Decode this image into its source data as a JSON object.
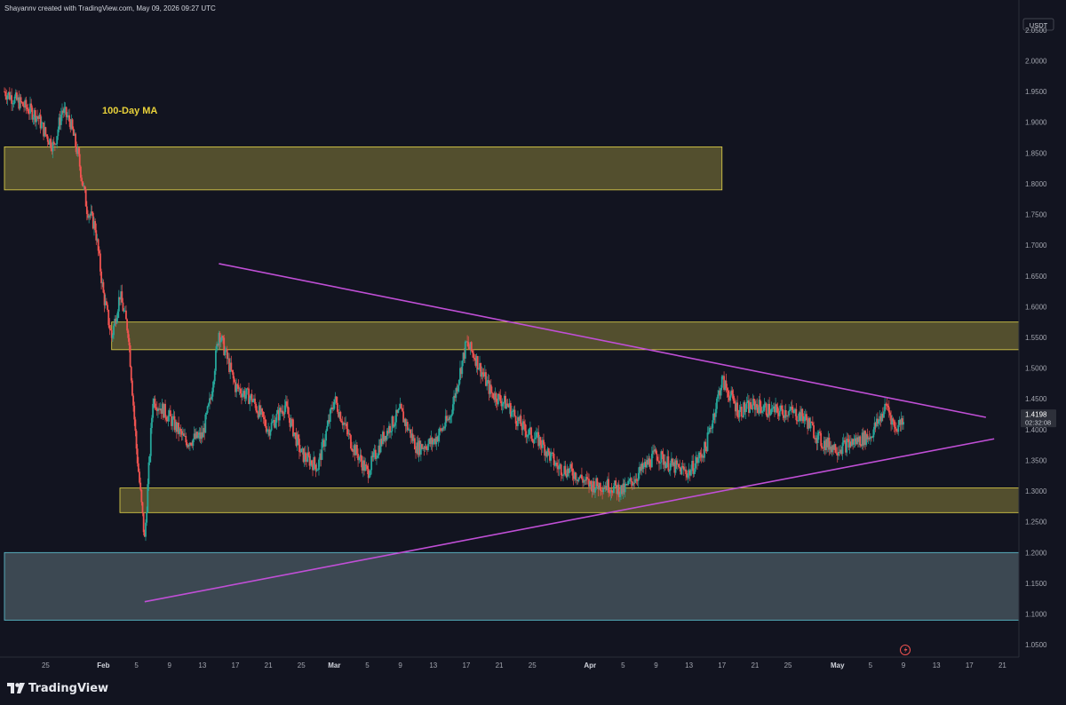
{
  "header": {
    "attribution": "Shayannv created with TradingView.com, May 09, 2026 09:27 UTC"
  },
  "brand": {
    "logo_text": "TradingView",
    "icon": "tradingview-logo-icon"
  },
  "price_axis": {
    "currency_badge": "USDT",
    "ticks": [
      "2.0500",
      "2.0000",
      "1.9500",
      "1.9000",
      "1.8500",
      "1.8000",
      "1.7500",
      "1.7000",
      "1.6500",
      "1.6000",
      "1.5500",
      "1.5000",
      "1.4500",
      "1.4000",
      "1.3500",
      "1.3000",
      "1.2500",
      "1.2000",
      "1.1500",
      "1.1000",
      "1.0500"
    ],
    "last_price": "1.4198",
    "countdown": "02:32:08"
  },
  "time_axis": {
    "ticks": [
      "25",
      "Feb",
      "5",
      "9",
      "13",
      "17",
      "21",
      "25",
      "Mar",
      "5",
      "9",
      "13",
      "17",
      "21",
      "25",
      "Apr",
      "5",
      "9",
      "13",
      "17",
      "21",
      "25",
      "May",
      "5",
      "9",
      "13",
      "17",
      "21"
    ],
    "bold_ticks": [
      "Feb",
      "Mar",
      "Apr",
      "May"
    ]
  },
  "annotations": {
    "ma_label": "100-Day MA"
  },
  "colors": {
    "background": "#121420",
    "up_candle": "#26a69a",
    "down_candle": "#ef5350",
    "zone_yellow_fill": "#5b5530",
    "zone_yellow_stroke": "#e6d74a",
    "zone_blue_fill": "#3f4b55",
    "zone_blue_stroke": "#5dc4d4",
    "triangle_line": "#c04fd6",
    "label_yellow": "#e9d23a",
    "price_badge": "#2d303a"
  },
  "chart_data": {
    "type": "candlestick",
    "title": "",
    "symbol_quote": "USDT",
    "x_axis": {
      "start": "2026-01-20",
      "end": "2026-05-23"
    },
    "y_axis": {
      "min": 1.03,
      "max": 2.07
    },
    "grid": false,
    "price_path": [
      [
        "2026-01-20",
        1.95
      ],
      [
        "2026-01-22",
        1.93
      ],
      [
        "2026-01-24",
        1.91
      ],
      [
        "2026-01-25",
        1.88
      ],
      [
        "2026-01-26",
        1.86
      ],
      [
        "2026-01-27",
        1.92
      ],
      [
        "2026-01-28",
        1.9
      ],
      [
        "2026-01-29",
        1.84
      ],
      [
        "2026-01-30",
        1.76
      ],
      [
        "2026-01-31",
        1.73
      ],
      [
        "2026-02-01",
        1.62
      ],
      [
        "2026-02-02",
        1.55
      ],
      [
        "2026-02-03",
        1.62
      ],
      [
        "2026-02-04",
        1.56
      ],
      [
        "2026-02-05",
        1.37
      ],
      [
        "2026-02-06",
        1.22
      ],
      [
        "2026-02-07",
        1.45
      ],
      [
        "2026-02-09",
        1.42
      ],
      [
        "2026-02-11",
        1.38
      ],
      [
        "2026-02-13",
        1.39
      ],
      [
        "2026-02-14",
        1.45
      ],
      [
        "2026-02-15",
        1.56
      ],
      [
        "2026-02-17",
        1.47
      ],
      [
        "2026-02-19",
        1.45
      ],
      [
        "2026-02-21",
        1.4
      ],
      [
        "2026-02-23",
        1.44
      ],
      [
        "2026-02-25",
        1.36
      ],
      [
        "2026-02-27",
        1.34
      ],
      [
        "2026-03-01",
        1.45
      ],
      [
        "2026-03-03",
        1.38
      ],
      [
        "2026-03-05",
        1.33
      ],
      [
        "2026-03-07",
        1.39
      ],
      [
        "2026-03-09",
        1.43
      ],
      [
        "2026-03-11",
        1.37
      ],
      [
        "2026-03-13",
        1.38
      ],
      [
        "2026-03-15",
        1.42
      ],
      [
        "2026-03-17",
        1.54
      ],
      [
        "2026-03-18",
        1.52
      ],
      [
        "2026-03-20",
        1.46
      ],
      [
        "2026-03-22",
        1.44
      ],
      [
        "2026-03-24",
        1.4
      ],
      [
        "2026-03-26",
        1.38
      ],
      [
        "2026-03-28",
        1.34
      ],
      [
        "2026-03-30",
        1.33
      ],
      [
        "2026-04-01",
        1.31
      ],
      [
        "2026-04-03",
        1.31
      ],
      [
        "2026-04-05",
        1.3
      ],
      [
        "2026-04-07",
        1.33
      ],
      [
        "2026-04-09",
        1.36
      ],
      [
        "2026-04-11",
        1.34
      ],
      [
        "2026-04-13",
        1.33
      ],
      [
        "2026-04-15",
        1.37
      ],
      [
        "2026-04-17",
        1.48
      ],
      [
        "2026-04-19",
        1.43
      ],
      [
        "2026-04-21",
        1.44
      ],
      [
        "2026-04-23",
        1.43
      ],
      [
        "2026-04-25",
        1.43
      ],
      [
        "2026-04-27",
        1.42
      ],
      [
        "2026-04-29",
        1.38
      ],
      [
        "2026-05-01",
        1.37
      ],
      [
        "2026-05-03",
        1.38
      ],
      [
        "2026-05-05",
        1.39
      ],
      [
        "2026-05-07",
        1.44
      ],
      [
        "2026-05-08",
        1.4
      ],
      [
        "2026-05-09",
        1.42
      ]
    ],
    "zones": [
      {
        "kind": "supply",
        "start": "2026-01-20",
        "end": "2026-04-17",
        "low": 1.79,
        "high": 1.86
      },
      {
        "kind": "resistance",
        "start": "2026-02-02",
        "end": "2026-05-23",
        "low": 1.53,
        "high": 1.575
      },
      {
        "kind": "support",
        "start": "2026-02-03",
        "end": "2026-05-23",
        "low": 1.265,
        "high": 1.305
      },
      {
        "kind": "demand",
        "start": "2026-01-20",
        "end": "2026-05-23",
        "low": 1.09,
        "high": 1.2
      }
    ],
    "triangle": {
      "upper": {
        "from": [
          "2026-02-15",
          1.67
        ],
        "to": [
          "2026-05-19",
          1.42
        ]
      },
      "lower": {
        "from": [
          "2026-02-06",
          1.12
        ],
        "to": [
          "2026-05-20",
          1.385
        ]
      }
    },
    "last_price": 1.4198
  }
}
